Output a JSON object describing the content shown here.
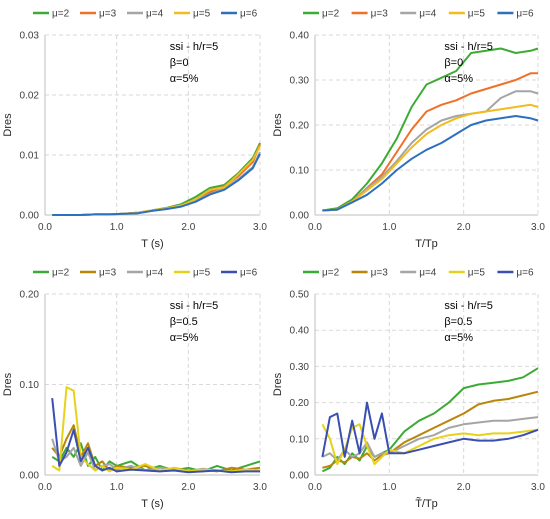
{
  "chart_data": [
    {
      "type": "line",
      "panel": "top-left",
      "xlabel": "T (s)",
      "ylabel": "Dres",
      "xlim": [
        0,
        3
      ],
      "ylim": [
        0,
        0.03
      ],
      "xticks": [
        "0.0",
        "1.0",
        "2.0",
        "3.0"
      ],
      "yticks": [
        "0.00",
        "0.01",
        "0.02",
        "0.03"
      ],
      "annotations": [
        "ssi - h/r=5",
        "β=0",
        "α=5%"
      ],
      "legend_position": "top",
      "grid": true,
      "x": [
        0.1,
        0.3,
        0.5,
        0.7,
        0.9,
        1.1,
        1.3,
        1.5,
        1.7,
        1.9,
        2.1,
        2.3,
        2.5,
        2.7,
        2.9,
        3.0
      ],
      "series": [
        {
          "name": "μ=2",
          "color": "#3cab34",
          "values": [
            0,
            0,
            0,
            0.0001,
            0.0001,
            0.0002,
            0.0004,
            0.0008,
            0.0012,
            0.0018,
            0.003,
            0.0045,
            0.005,
            0.007,
            0.0095,
            0.012
          ]
        },
        {
          "name": "μ=3",
          "color": "#f07028",
          "values": [
            0,
            0,
            0,
            0.0001,
            0.0001,
            0.0002,
            0.0004,
            0.0007,
            0.0011,
            0.0016,
            0.0025,
            0.0038,
            0.0048,
            0.0065,
            0.0088,
            0.0118
          ]
        },
        {
          "name": "μ=4",
          "color": "#a5a5a5",
          "values": [
            0,
            0,
            0,
            0.0001,
            0.0001,
            0.0002,
            0.0003,
            0.0007,
            0.001,
            0.0015,
            0.0024,
            0.0035,
            0.0044,
            0.006,
            0.008,
            0.0105
          ]
        },
        {
          "name": "μ=5",
          "color": "#f0bc1f",
          "values": [
            0,
            0,
            0,
            0.0001,
            0.0001,
            0.0002,
            0.0004,
            0.0008,
            0.0011,
            0.0016,
            0.0026,
            0.0042,
            0.0046,
            0.0068,
            0.0092,
            0.0115
          ]
        },
        {
          "name": "μ=6",
          "color": "#2e6fbf",
          "values": [
            0,
            0,
            0,
            0.0001,
            0.0001,
            0.0002,
            0.0003,
            0.0007,
            0.001,
            0.0014,
            0.0022,
            0.0034,
            0.0042,
            0.0058,
            0.0078,
            0.0102
          ]
        }
      ]
    },
    {
      "type": "line",
      "panel": "top-right",
      "xlabel": "T/Tp",
      "ylabel": "Dres",
      "xlim": [
        0,
        3
      ],
      "ylim": [
        0,
        0.4
      ],
      "xticks": [
        "0.0",
        "1.0",
        "2.0",
        "3.0"
      ],
      "yticks": [
        "0.00",
        "0.10",
        "0.20",
        "0.30",
        "0.40"
      ],
      "annotations": [
        "ssi - h/r=5",
        "β=0",
        "α=5%"
      ],
      "legend_position": "top",
      "grid": true,
      "x": [
        0.1,
        0.3,
        0.5,
        0.7,
        0.9,
        1.1,
        1.3,
        1.5,
        1.7,
        1.9,
        2.1,
        2.3,
        2.5,
        2.7,
        2.9,
        3.0
      ],
      "series": [
        {
          "name": "μ=2",
          "color": "#3cab34",
          "values": [
            0.01,
            0.015,
            0.035,
            0.07,
            0.115,
            0.17,
            0.24,
            0.29,
            0.305,
            0.32,
            0.36,
            0.365,
            0.37,
            0.36,
            0.365,
            0.37
          ]
        },
        {
          "name": "μ=3",
          "color": "#f07028",
          "values": [
            0.01,
            0.012,
            0.03,
            0.06,
            0.09,
            0.14,
            0.19,
            0.23,
            0.245,
            0.255,
            0.27,
            0.28,
            0.29,
            0.3,
            0.315,
            0.315
          ]
        },
        {
          "name": "μ=4",
          "color": "#a5a5a5",
          "values": [
            0.01,
            0.012,
            0.03,
            0.058,
            0.085,
            0.12,
            0.16,
            0.19,
            0.21,
            0.22,
            0.225,
            0.23,
            0.26,
            0.275,
            0.275,
            0.27
          ]
        },
        {
          "name": "μ=5",
          "color": "#f0bc1f",
          "values": [
            0.01,
            0.012,
            0.03,
            0.055,
            0.08,
            0.115,
            0.15,
            0.18,
            0.2,
            0.215,
            0.225,
            0.23,
            0.235,
            0.24,
            0.245,
            0.24
          ]
        },
        {
          "name": "μ=6",
          "color": "#2e6fbf",
          "values": [
            0.01,
            0.012,
            0.028,
            0.045,
            0.07,
            0.1,
            0.125,
            0.145,
            0.16,
            0.18,
            0.2,
            0.21,
            0.215,
            0.22,
            0.215,
            0.21
          ]
        }
      ]
    },
    {
      "type": "line",
      "panel": "bottom-left",
      "xlabel": "T (s)",
      "ylabel": "Dres",
      "xlim": [
        0,
        3
      ],
      "ylim": [
        0,
        0.2
      ],
      "xticks": [
        "0.0",
        "1.0",
        "2.0",
        "3.0"
      ],
      "yticks": [
        "0.00",
        "0.10",
        "0.20"
      ],
      "annotations": [
        "ssi - h/r=5",
        "β=0.5",
        "α=5%"
      ],
      "legend_position": "top",
      "grid": true,
      "x": [
        0.1,
        0.2,
        0.3,
        0.4,
        0.5,
        0.6,
        0.7,
        0.8,
        0.9,
        1.0,
        1.2,
        1.4,
        1.6,
        1.8,
        2.0,
        2.2,
        2.4,
        2.6,
        2.8,
        3.0
      ],
      "series": [
        {
          "name": "μ=2",
          "color": "#3cab34",
          "values": [
            0.02,
            0.015,
            0.03,
            0.02,
            0.035,
            0.01,
            0.02,
            0.005,
            0.015,
            0.01,
            0.015,
            0.005,
            0.01,
            0.005,
            0.008,
            0.004,
            0.01,
            0.005,
            0.01,
            0.015
          ]
        },
        {
          "name": "μ=3",
          "color": "#b8860b",
          "values": [
            0.03,
            0.02,
            0.04,
            0.055,
            0.02,
            0.035,
            0.01,
            0.015,
            0.005,
            0.01,
            0.008,
            0.01,
            0.004,
            0.008,
            0.005,
            0.006,
            0.004,
            0.008,
            0.006,
            0.008
          ]
        },
        {
          "name": "μ=4",
          "color": "#a5a5a5",
          "values": [
            0.04,
            0.015,
            0.02,
            0.03,
            0.01,
            0.025,
            0.005,
            0.01,
            0.012,
            0.006,
            0.01,
            0.005,
            0.008,
            0.006,
            0.004,
            0.007,
            0.005,
            0.004,
            0.006,
            0.005
          ]
        },
        {
          "name": "μ=5",
          "color": "#e6d21a",
          "values": [
            0.01,
            0.005,
            0.097,
            0.093,
            0.02,
            0.012,
            0.005,
            0.01,
            0.004,
            0.008,
            0.006,
            0.012,
            0.005,
            0.008,
            0.004,
            0.006,
            0.005,
            0.004,
            0.006,
            0.005
          ]
        },
        {
          "name": "μ=6",
          "color": "#3a4fb0",
          "values": [
            0.085,
            0.01,
            0.025,
            0.05,
            0.015,
            0.03,
            0.01,
            0.005,
            0.008,
            0.004,
            0.006,
            0.005,
            0.004,
            0.005,
            0.003,
            0.004,
            0.005,
            0.003,
            0.004,
            0.004
          ]
        }
      ]
    },
    {
      "type": "line",
      "panel": "bottom-right",
      "xlabel": "T̃/Tp",
      "ylabel": "Dres",
      "xlim": [
        0,
        3
      ],
      "ylim": [
        0,
        0.5
      ],
      "xticks": [
        "0.0",
        "1.0",
        "2.0",
        "3.0"
      ],
      "yticks": [
        "0.00",
        "0.10",
        "0.20",
        "0.30",
        "0.40",
        "0.50"
      ],
      "annotations": [
        "ssi - h/r=5",
        "β=0.5",
        "α=5%"
      ],
      "legend_position": "top",
      "grid": true,
      "x": [
        0.1,
        0.2,
        0.3,
        0.4,
        0.5,
        0.6,
        0.7,
        0.8,
        0.9,
        1.0,
        1.2,
        1.4,
        1.6,
        1.8,
        2.0,
        2.2,
        2.4,
        2.6,
        2.8,
        3.0
      ],
      "series": [
        {
          "name": "μ=2",
          "color": "#3cab34",
          "values": [
            0.01,
            0.02,
            0.05,
            0.03,
            0.06,
            0.04,
            0.08,
            0.05,
            0.06,
            0.07,
            0.12,
            0.15,
            0.17,
            0.2,
            0.24,
            0.25,
            0.255,
            0.26,
            0.27,
            0.295
          ]
        },
        {
          "name": "μ=3",
          "color": "#b8860b",
          "values": [
            0.02,
            0.025,
            0.04,
            0.035,
            0.05,
            0.045,
            0.06,
            0.04,
            0.055,
            0.06,
            0.09,
            0.11,
            0.13,
            0.15,
            0.17,
            0.195,
            0.205,
            0.21,
            0.22,
            0.23
          ]
        },
        {
          "name": "μ=4",
          "color": "#a5a5a5",
          "values": [
            0.05,
            0.06,
            0.04,
            0.07,
            0.05,
            0.06,
            0.09,
            0.05,
            0.06,
            0.06,
            0.08,
            0.1,
            0.11,
            0.13,
            0.14,
            0.145,
            0.15,
            0.15,
            0.155,
            0.16
          ]
        },
        {
          "name": "μ=5",
          "color": "#e6d21a",
          "values": [
            0.14,
            0.1,
            0.03,
            0.07,
            0.13,
            0.14,
            0.08,
            0.03,
            0.05,
            0.07,
            0.06,
            0.08,
            0.1,
            0.11,
            0.115,
            0.11,
            0.115,
            0.115,
            0.12,
            0.125
          ]
        },
        {
          "name": "μ=6",
          "color": "#3a4fb0",
          "values": [
            0.05,
            0.16,
            0.17,
            0.05,
            0.15,
            0.06,
            0.2,
            0.1,
            0.17,
            0.06,
            0.06,
            0.07,
            0.08,
            0.09,
            0.1,
            0.095,
            0.095,
            0.1,
            0.11,
            0.125
          ]
        }
      ]
    }
  ]
}
